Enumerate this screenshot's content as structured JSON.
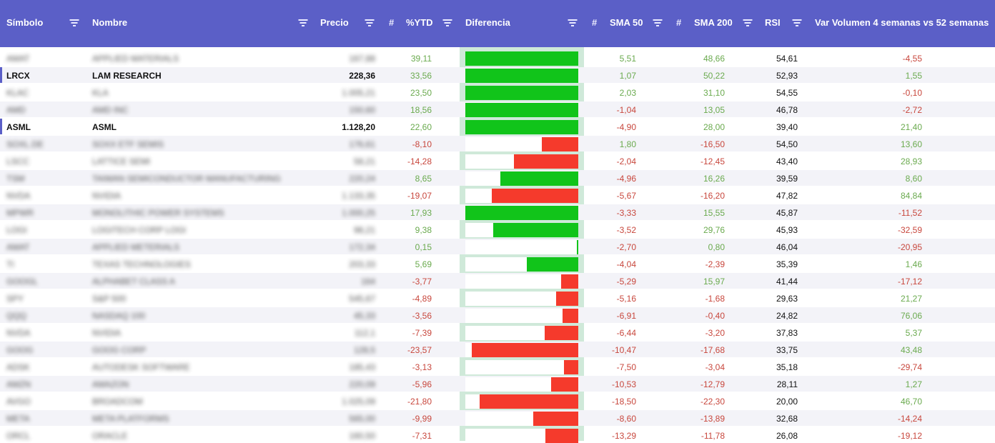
{
  "header": {
    "simbolo": "Símbolo",
    "nombre": "Nombre",
    "precio": "Precio",
    "hash": "#",
    "ytd": "%YTD",
    "diferencia": "Diferencia",
    "sma50": "SMA 50",
    "sma200": "SMA 200",
    "rsi": "RSI",
    "volumen": "Var Volumen 4 semanas vs 52 semanas"
  },
  "colors": {
    "header_bg": "#5b5fc7",
    "positive": "#6aaa4e",
    "negative": "#c8473d",
    "bar_green": "#11c41a",
    "bar_red": "#f53a2c",
    "diff_bg": "#cfe9d9"
  },
  "rows": [
    {
      "symbol": "AMAT",
      "name": "APPLIED MATERIALS",
      "price": "167,88",
      "ytd": "39,11",
      "sma50": "5,51",
      "sma200": "48,66",
      "rsi": "54,61",
      "vol": "-4,55",
      "blur": true
    },
    {
      "symbol": "LRCX",
      "name": "LAM RESEARCH",
      "price": "228,36",
      "ytd": "33,56",
      "sma50": "1,07",
      "sma200": "50,22",
      "rsi": "52,93",
      "vol": "1,55",
      "blur": false
    },
    {
      "symbol": "KLAC",
      "name": "KLA",
      "price": "1.005,21",
      "ytd": "23,50",
      "sma50": "2,03",
      "sma200": "31,10",
      "rsi": "54,55",
      "vol": "-0,10",
      "blur": true
    },
    {
      "symbol": "AMD",
      "name": "AMD INC",
      "price": "150,60",
      "ytd": "18,56",
      "sma50": "-1,04",
      "sma200": "13,05",
      "rsi": "46,78",
      "vol": "-2,72",
      "blur": true
    },
    {
      "symbol": "ASML",
      "name": "ASML",
      "price": "1.128,20",
      "ytd": "22,60",
      "sma50": "-4,90",
      "sma200": "28,00",
      "rsi": "39,40",
      "vol": "21,40",
      "blur": false
    },
    {
      "symbol": "SOXL.DE",
      "name": "SOXX ETF SEMIS",
      "price": "176,61",
      "ytd": "-8,10",
      "sma50": "1,80",
      "sma200": "-16,50",
      "rsi": "54,50",
      "vol": "13,60",
      "blur": true
    },
    {
      "symbol": "LSCC",
      "name": "LATTICE SEMI",
      "price": "58,21",
      "ytd": "-14,28",
      "sma50": "-2,04",
      "sma200": "-12,45",
      "rsi": "43,40",
      "vol": "28,93",
      "blur": true
    },
    {
      "symbol": "TSM",
      "name": "TAIWAN SEMICONDUCTOR MANUFACTURING",
      "price": "220,24",
      "ytd": "8,65",
      "sma50": "-4,96",
      "sma200": "16,26",
      "rsi": "39,59",
      "vol": "8,60",
      "blur": true
    },
    {
      "symbol": "NVDA",
      "name": "NVIDIA",
      "price": "1.133,35",
      "ytd": "-19,07",
      "sma50": "-5,67",
      "sma200": "-16,20",
      "rsi": "47,82",
      "vol": "84,84",
      "blur": true
    },
    {
      "symbol": "MPWR",
      "name": "MONOLITHIC POWER SYSTEMS",
      "price": "1.000,25",
      "ytd": "17,93",
      "sma50": "-3,33",
      "sma200": "15,55",
      "rsi": "45,87",
      "vol": "-11,52",
      "blur": true
    },
    {
      "symbol": "LOGI",
      "name": "LOGITECH CORP LOGI",
      "price": "98,21",
      "ytd": "9,38",
      "sma50": "-3,52",
      "sma200": "29,76",
      "rsi": "45,93",
      "vol": "-32,59",
      "blur": true
    },
    {
      "symbol": "AMAT",
      "name": "APPLIED METERIALS",
      "price": "172,34",
      "ytd": "0,15",
      "sma50": "-2,70",
      "sma200": "0,80",
      "rsi": "46,04",
      "vol": "-20,95",
      "blur": true
    },
    {
      "symbol": "TI",
      "name": "TEXAS TECHNOLOGIES",
      "price": "203,33",
      "ytd": "5,69",
      "sma50": "-4,04",
      "sma200": "-2,39",
      "rsi": "35,39",
      "vol": "1,46",
      "blur": true
    },
    {
      "symbol": "GOOGL",
      "name": "ALPHABET CLASS A",
      "price": "164",
      "ytd": "-3,77",
      "sma50": "-5,29",
      "sma200": "15,97",
      "rsi": "41,44",
      "vol": "-17,12",
      "blur": true
    },
    {
      "symbol": "SPY",
      "name": "S&P 500",
      "price": "545,67",
      "ytd": "-4,89",
      "sma50": "-5,16",
      "sma200": "-1,68",
      "rsi": "29,63",
      "vol": "21,27",
      "blur": true
    },
    {
      "symbol": "QQQ",
      "name": "NASDAQ 100",
      "price": "45,33",
      "ytd": "-3,56",
      "sma50": "-6,91",
      "sma200": "-0,40",
      "rsi": "24,82",
      "vol": "76,06",
      "blur": true
    },
    {
      "symbol": "NVDA",
      "name": "NVIDIA",
      "price": "112,1",
      "ytd": "-7,39",
      "sma50": "-6,44",
      "sma200": "-3,20",
      "rsi": "37,83",
      "vol": "5,37",
      "blur": true
    },
    {
      "symbol": "GOOG",
      "name": "GOOG CORP",
      "price": "128,5",
      "ytd": "-23,57",
      "sma50": "-10,47",
      "sma200": "-17,68",
      "rsi": "33,75",
      "vol": "43,48",
      "blur": true
    },
    {
      "symbol": "ADSK",
      "name": "AUTODESK SOFTWARE",
      "price": "185,43",
      "ytd": "-3,13",
      "sma50": "-7,50",
      "sma200": "-3,04",
      "rsi": "35,18",
      "vol": "-29,74",
      "blur": true
    },
    {
      "symbol": "AMZN",
      "name": "AMAZON",
      "price": "220,09",
      "ytd": "-5,96",
      "sma50": "-10,53",
      "sma200": "-12,79",
      "rsi": "28,11",
      "vol": "1,27",
      "blur": true
    },
    {
      "symbol": "AVGO",
      "name": "BROADCOM",
      "price": "1.025,09",
      "ytd": "-21,80",
      "sma50": "-18,50",
      "sma200": "-22,30",
      "rsi": "20,00",
      "vol": "46,70",
      "blur": true
    },
    {
      "symbol": "META",
      "name": "META PLATFORMS",
      "price": "565,00",
      "ytd": "-9,99",
      "sma50": "-8,60",
      "sma200": "-13,89",
      "rsi": "32,68",
      "vol": "-14,24",
      "blur": true
    },
    {
      "symbol": "ORCL",
      "name": "ORACLE",
      "price": "160,50",
      "ytd": "-7,31",
      "sma50": "-13,29",
      "sma200": "-11,78",
      "rsi": "26,08",
      "vol": "-19,12",
      "blur": true
    }
  ]
}
